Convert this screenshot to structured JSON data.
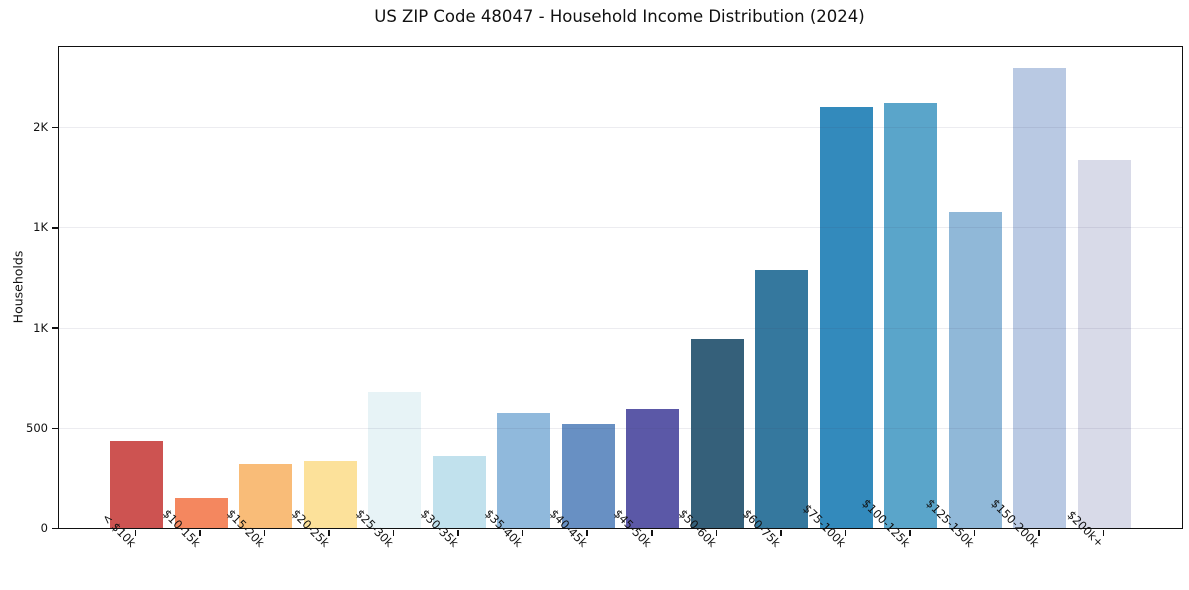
{
  "chart_data": {
    "type": "bar",
    "title": "US ZIP Code 48047 - Household Income Distribution (2024)",
    "xlabel": "",
    "ylabel": "Households",
    "categories": [
      "< $10k",
      "$10-15k",
      "$15-20k",
      "$20-25k",
      "$25-30k",
      "$30-35k",
      "$35-40k",
      "$40-45k",
      "$45-50k",
      "$50-60k",
      "$60-75k",
      "$75-100k",
      "$100-125k",
      "$125-150k",
      "$150-200k",
      "$200k+"
    ],
    "values": [
      435,
      150,
      320,
      335,
      680,
      360,
      575,
      520,
      595,
      945,
      1285,
      2100,
      2120,
      1575,
      2295,
      1835
    ],
    "bar_colors": [
      "#cd5351",
      "#f4875f",
      "#f9bc78",
      "#fce19a",
      "#e7f3f6",
      "#c1e1ed",
      "#90b9dc",
      "#6890c3",
      "#5b58a7",
      "#35607a",
      "#35789e",
      "#338abc",
      "#5aa5ca",
      "#90b8d8",
      "#b9c9e3",
      "#d8dae8"
    ],
    "y_ticks": {
      "values": [
        0,
        500,
        1000,
        1500,
        2000
      ],
      "labels": [
        "0",
        "500",
        "1K",
        "1K",
        "2K"
      ]
    },
    "ylim": [
      0,
      2400
    ],
    "grid": "horizontal-light",
    "legend": "none",
    "background_color": "#ffffff",
    "axis_color": "#111111",
    "x_label_rotation_deg": 45
  }
}
